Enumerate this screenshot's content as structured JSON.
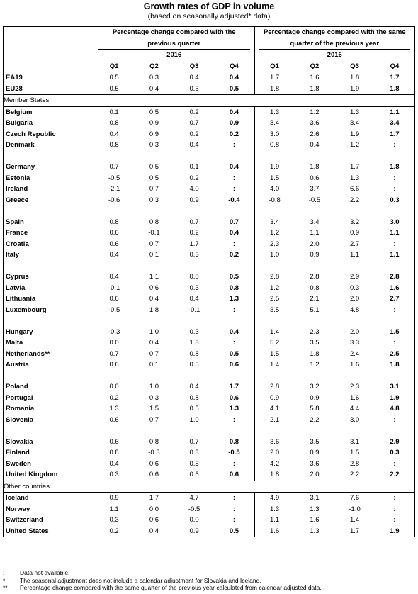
{
  "title": "Growth rates of GDP in volume",
  "subtitle": "(based on seasonally adjusted* data)",
  "header": {
    "left_group": "Percentage change compared with the previous quarter",
    "right_group": "Percentage change compared with the same quarter of the previous year",
    "year_left": "2016",
    "year_right": "2016",
    "quarters": [
      "Q1",
      "Q2",
      "Q3",
      "Q4"
    ]
  },
  "aggregates": [
    {
      "name": "EA19",
      "q": [
        "0.5",
        "0.3",
        "0.4",
        "0.4"
      ],
      "y": [
        "1.7",
        "1.6",
        "1.8",
        "1.7"
      ]
    },
    {
      "name": "EU28",
      "q": [
        "0.5",
        "0.4",
        "0.5",
        "0.5"
      ],
      "y": [
        "1.8",
        "1.8",
        "1.9",
        "1.8"
      ]
    }
  ],
  "member_states_label": "Member States",
  "member_states": [
    [
      {
        "name": "Belgium",
        "q": [
          "0.1",
          "0.5",
          "0.2",
          "0.4"
        ],
        "y": [
          "1.3",
          "1.2",
          "1.3",
          "1.1"
        ]
      },
      {
        "name": "Bulgaria",
        "q": [
          "0.8",
          "0.9",
          "0.7",
          "0.9"
        ],
        "y": [
          "3.4",
          "3.6",
          "3.4",
          "3.4"
        ]
      },
      {
        "name": "Czech Republic",
        "q": [
          "0.4",
          "0.9",
          "0.2",
          "0.2"
        ],
        "y": [
          "3.0",
          "2.6",
          "1.9",
          "1.7"
        ]
      },
      {
        "name": "Denmark",
        "q": [
          "0.8",
          "0.3",
          "0.4",
          ":"
        ],
        "y": [
          "0.8",
          "0.4",
          "1.2",
          ":"
        ]
      }
    ],
    [
      {
        "name": "Germany",
        "q": [
          "0.7",
          "0.5",
          "0.1",
          "0.4"
        ],
        "y": [
          "1.9",
          "1.8",
          "1.7",
          "1.8"
        ]
      },
      {
        "name": "Estonia",
        "q": [
          "-0.5",
          "0.5",
          "0.2",
          ":"
        ],
        "y": [
          "1.5",
          "0.6",
          "1.3",
          ":"
        ]
      },
      {
        "name": "Ireland",
        "q": [
          "-2.1",
          "0.7",
          "4.0",
          ":"
        ],
        "y": [
          "4.0",
          "3.7",
          "6.6",
          ":"
        ]
      },
      {
        "name": "Greece",
        "q": [
          "-0.6",
          "0.3",
          "0.9",
          "-0.4"
        ],
        "y": [
          "-0.8",
          "-0.5",
          "2.2",
          "0.3"
        ]
      }
    ],
    [
      {
        "name": "Spain",
        "q": [
          "0.8",
          "0.8",
          "0.7",
          "0.7"
        ],
        "y": [
          "3.4",
          "3.4",
          "3.2",
          "3.0"
        ]
      },
      {
        "name": "France",
        "q": [
          "0.6",
          "-0.1",
          "0.2",
          "0.4"
        ],
        "y": [
          "1.2",
          "1.1",
          "0.9",
          "1.1"
        ]
      },
      {
        "name": "Croatia",
        "q": [
          "0.6",
          "0.7",
          "1.7",
          ":"
        ],
        "y": [
          "2.3",
          "2.0",
          "2.7",
          ":"
        ]
      },
      {
        "name": "Italy",
        "q": [
          "0.4",
          "0.1",
          "0.3",
          "0.2"
        ],
        "y": [
          "1.0",
          "0.9",
          "1.1",
          "1.1"
        ]
      }
    ],
    [
      {
        "name": "Cyprus",
        "q": [
          "0.4",
          "1.1",
          "0.8",
          "0.5"
        ],
        "y": [
          "2.8",
          "2.8",
          "2.9",
          "2.8"
        ]
      },
      {
        "name": "Latvia",
        "q": [
          "-0.1",
          "0.6",
          "0.3",
          "0.8"
        ],
        "y": [
          "1.2",
          "0.8",
          "0.3",
          "1.6"
        ]
      },
      {
        "name": "Lithuania",
        "q": [
          "0.6",
          "0.4",
          "0.4",
          "1.3"
        ],
        "y": [
          "2.5",
          "2.1",
          "2.0",
          "2.7"
        ]
      },
      {
        "name": "Luxembourg",
        "q": [
          "-0.5",
          "1.8",
          "-0.1",
          ":"
        ],
        "y": [
          "3.5",
          "5.1",
          "4.8",
          ":"
        ]
      }
    ],
    [
      {
        "name": "Hungary",
        "q": [
          "-0.3",
          "1.0",
          "0.3",
          "0.4"
        ],
        "y": [
          "1.4",
          "2.3",
          "2.0",
          "1.5"
        ]
      },
      {
        "name": "Malta",
        "q": [
          "0.0",
          "0.4",
          "1.3",
          ":"
        ],
        "y": [
          "5.2",
          "3.5",
          "3.3",
          ":"
        ]
      },
      {
        "name": "Netherlands**",
        "q": [
          "0.7",
          "0.7",
          "0.8",
          "0.5"
        ],
        "y": [
          "1.5",
          "1.8",
          "2.4",
          "2.5"
        ]
      },
      {
        "name": "Austria",
        "q": [
          "0.6",
          "0.1",
          "0.5",
          "0.6"
        ],
        "y": [
          "1.4",
          "1.2",
          "1.6",
          "1.8"
        ]
      }
    ],
    [
      {
        "name": "Poland",
        "q": [
          "0.0",
          "1.0",
          "0.4",
          "1.7"
        ],
        "y": [
          "2.8",
          "3.2",
          "2.3",
          "3.1"
        ]
      },
      {
        "name": "Portugal",
        "q": [
          "0.2",
          "0.3",
          "0.8",
          "0.6"
        ],
        "y": [
          "0.9",
          "0.9",
          "1.6",
          "1.9"
        ]
      },
      {
        "name": "Romania",
        "q": [
          "1.3",
          "1.5",
          "0.5",
          "1.3"
        ],
        "y": [
          "4.1",
          "5.8",
          "4.4",
          "4.8"
        ]
      },
      {
        "name": "Slovenia",
        "q": [
          "0.6",
          "0.7",
          "1.0",
          ":"
        ],
        "y": [
          "2.1",
          "2.2",
          "3.0",
          ":"
        ]
      }
    ],
    [
      {
        "name": "Slovakia",
        "q": [
          "0.6",
          "0.8",
          "0.7",
          "0.8"
        ],
        "y": [
          "3.6",
          "3.5",
          "3.1",
          "2.9"
        ]
      },
      {
        "name": "Finland",
        "q": [
          "0.8",
          "-0.3",
          "0.3",
          "-0.5"
        ],
        "y": [
          "2.0",
          "0.9",
          "1.5",
          "0.3"
        ]
      },
      {
        "name": "Sweden",
        "q": [
          "0.4",
          "0.6",
          "0.5",
          ":"
        ],
        "y": [
          "4.2",
          "3.6",
          "2.8",
          ":"
        ]
      },
      {
        "name": "United Kingdom",
        "q": [
          "0.3",
          "0.6",
          "0.6",
          "0.6"
        ],
        "y": [
          "1.8",
          "2.0",
          "2.2",
          "2.2"
        ]
      }
    ]
  ],
  "other_countries_label": "Other countries",
  "other_countries": [
    {
      "name": "Iceland",
      "q": [
        "0.9",
        "1.7",
        "4.7",
        ":"
      ],
      "y": [
        "4.9",
        "3.1",
        "7.6",
        ":"
      ]
    },
    {
      "name": "Norway",
      "q": [
        "1.1",
        "0.0",
        "-0.5",
        ":"
      ],
      "y": [
        "1.3",
        "1.3",
        "-1.0",
        ":"
      ]
    },
    {
      "name": "Switzerland",
      "q": [
        "0.3",
        "0.6",
        "0.0",
        ":"
      ],
      "y": [
        "1.1",
        "1.6",
        "1.4",
        ":"
      ]
    },
    {
      "name": "United States",
      "q": [
        "0.2",
        "0.4",
        "0.9",
        "0.5"
      ],
      "y": [
        "1.6",
        "1.3",
        "1.7",
        "1.9"
      ]
    }
  ],
  "footnotes": [
    {
      "mark": ":",
      "text": "Data not available."
    },
    {
      "mark": "*",
      "text": "The seasonal adjustment does not include a calendar adjustment for Slovakia and Iceland."
    },
    {
      "mark": "**",
      "text": "Percentage change compared with the same quarter of the previous year calculated from calendar adjusted data."
    }
  ]
}
